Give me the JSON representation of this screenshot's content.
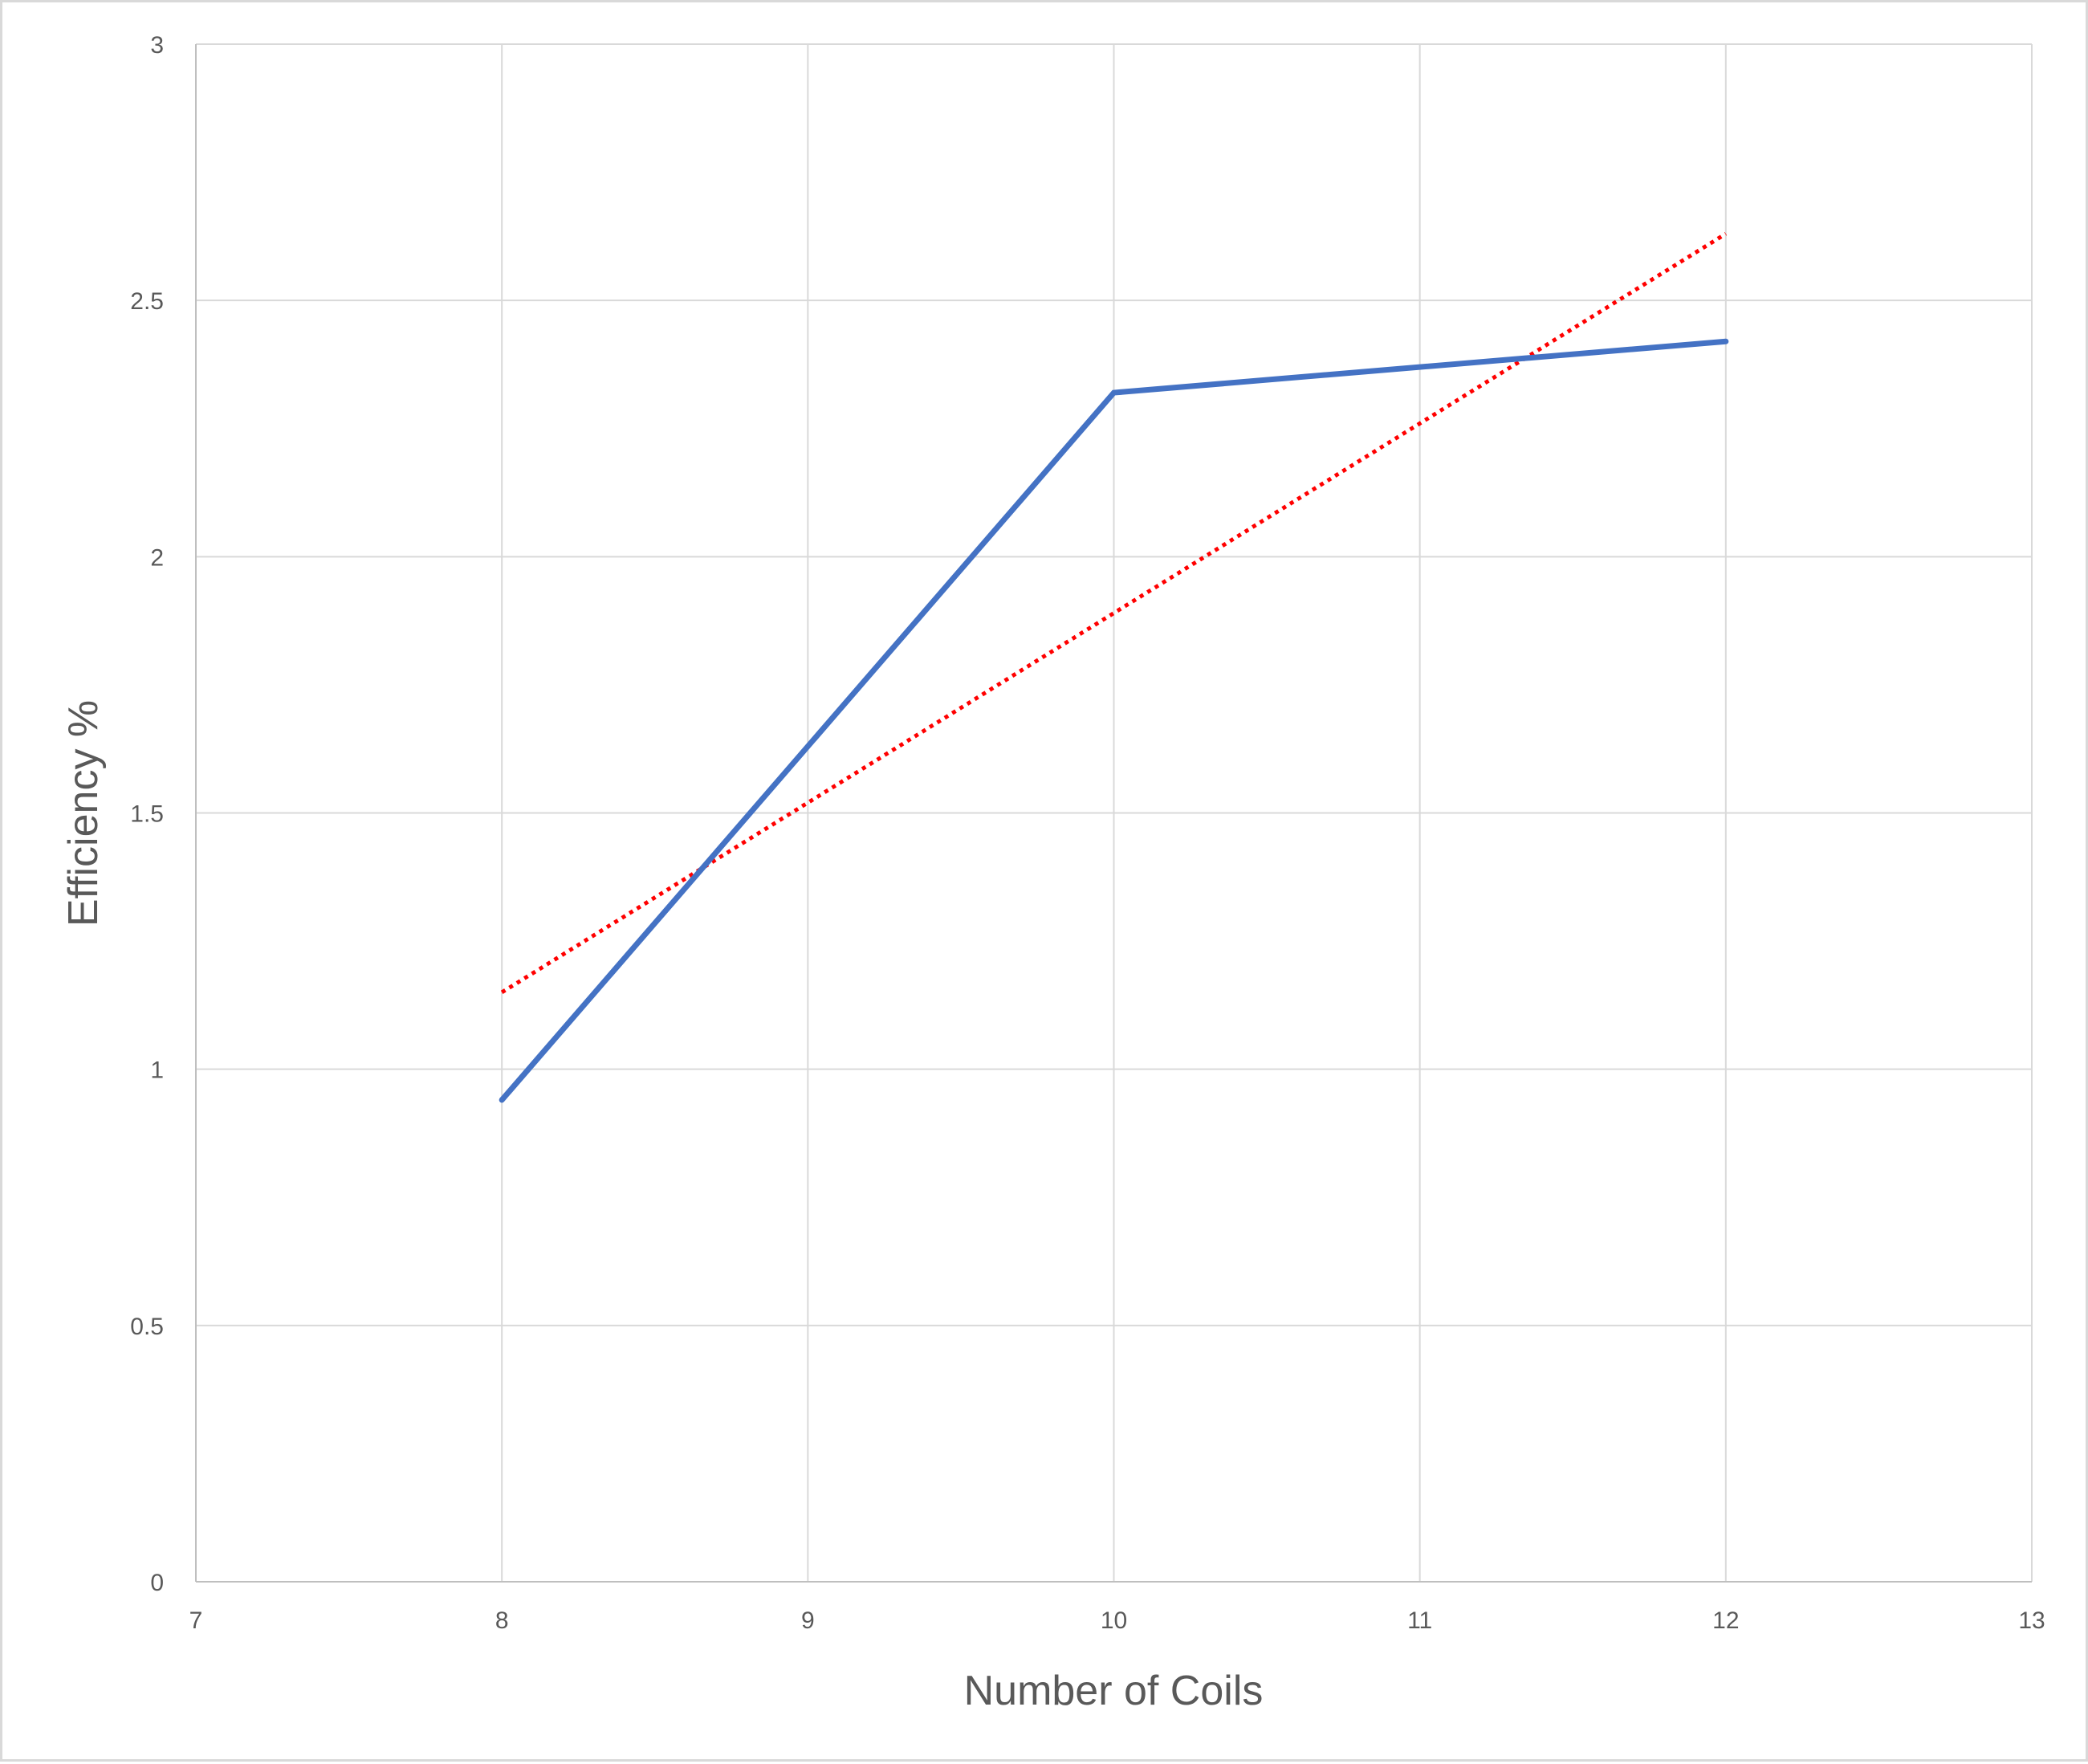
{
  "chart_data": {
    "type": "scatter",
    "title": "",
    "xlabel": "Number of Coils",
    "ylabel": "Efficiency %",
    "xlim": [
      7,
      13
    ],
    "ylim": [
      0,
      3
    ],
    "x_ticks": [
      "7",
      "8",
      "9",
      "10",
      "11",
      "12",
      "13"
    ],
    "y_ticks": [
      "0",
      "0.5",
      "1",
      "1.5",
      "2",
      "2.5",
      "3"
    ],
    "grid": true,
    "legend": "none",
    "series": [
      {
        "style": "solid-line",
        "color": "#4472c4",
        "x": [
          8,
          10,
          12
        ],
        "y": [
          0.94,
          2.32,
          2.42
        ]
      }
    ],
    "trendline": {
      "type": "linear",
      "style": "dotted",
      "color": "#ff0000",
      "x": [
        8,
        12
      ],
      "y": [
        1.15,
        2.63
      ]
    }
  }
}
